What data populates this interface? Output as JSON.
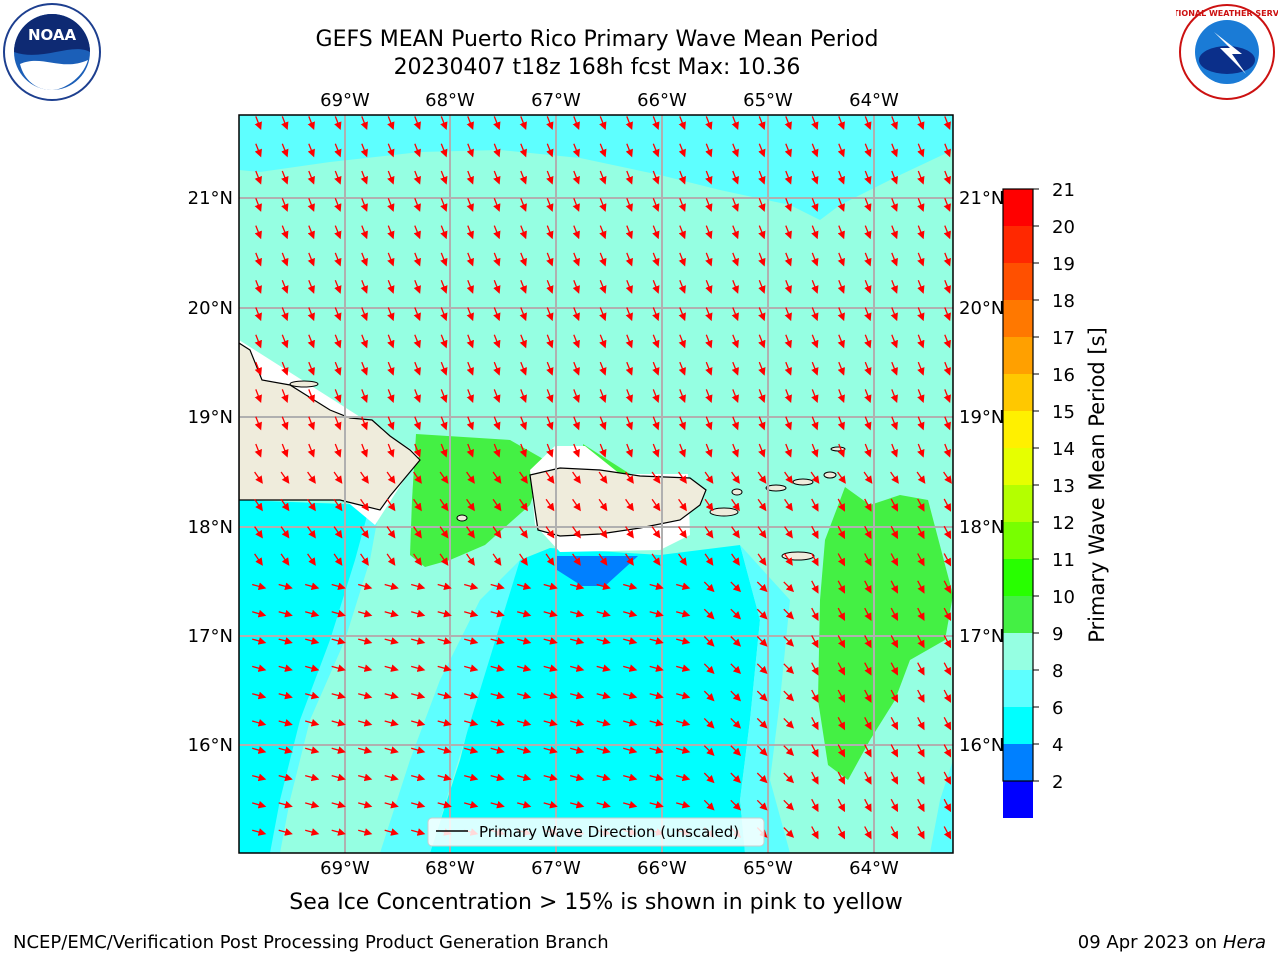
{
  "header": {
    "title_line1": "GEFS MEAN Puerto Rico Primary Wave Mean Period",
    "title_line2": "20230407 t18z 168h fcst   Max: 10.36"
  },
  "logos": {
    "left": {
      "name": "noaa-logo",
      "text": "NOAA"
    },
    "right": {
      "name": "nws-logo",
      "text": "NATIONAL WEATHER SERVICE"
    }
  },
  "map": {
    "lon_labels": [
      "69°W",
      "68°W",
      "67°W",
      "66°W",
      "65°W",
      "64°W"
    ],
    "lat_labels": [
      "21°N",
      "20°N",
      "19°N",
      "18°N",
      "17°N",
      "16°N"
    ],
    "legend_label": "Primary Wave Direction (unscaled)",
    "colors": {
      "land": "#efecdc",
      "period_8_9": "#5effff",
      "period_9_10": "#95ffe2",
      "period_10_11": "#44f044",
      "period_6_8": "#00ffff",
      "period_4_6": "#0080ff",
      "arrow": "#ff0000",
      "grid": "#b0b0b0"
    }
  },
  "colorbar": {
    "label": "Primary Wave Mean Period [s]",
    "ticks": [
      "21",
      "20",
      "19",
      "18",
      "17",
      "16",
      "15",
      "14",
      "13",
      "12",
      "11",
      "10",
      "9",
      "8",
      "6",
      "4",
      "2"
    ],
    "colors": [
      "#ff0000",
      "#ff2800",
      "#ff5000",
      "#ff7800",
      "#ffa000",
      "#ffc800",
      "#fff000",
      "#e6ff00",
      "#b4ff00",
      "#78ff00",
      "#28ff00",
      "#44f044",
      "#95ffe2",
      "#5effff",
      "#00ffff",
      "#0080ff",
      "#0000ff"
    ]
  },
  "caption": "Sea Ice Concentration > 15% is shown in pink to yellow",
  "footer": {
    "left": "NCEP/EMC/Verification Post Processing Product Generation Branch",
    "right_prefix": "09 Apr 2023 on ",
    "right_italic": "Hera"
  }
}
